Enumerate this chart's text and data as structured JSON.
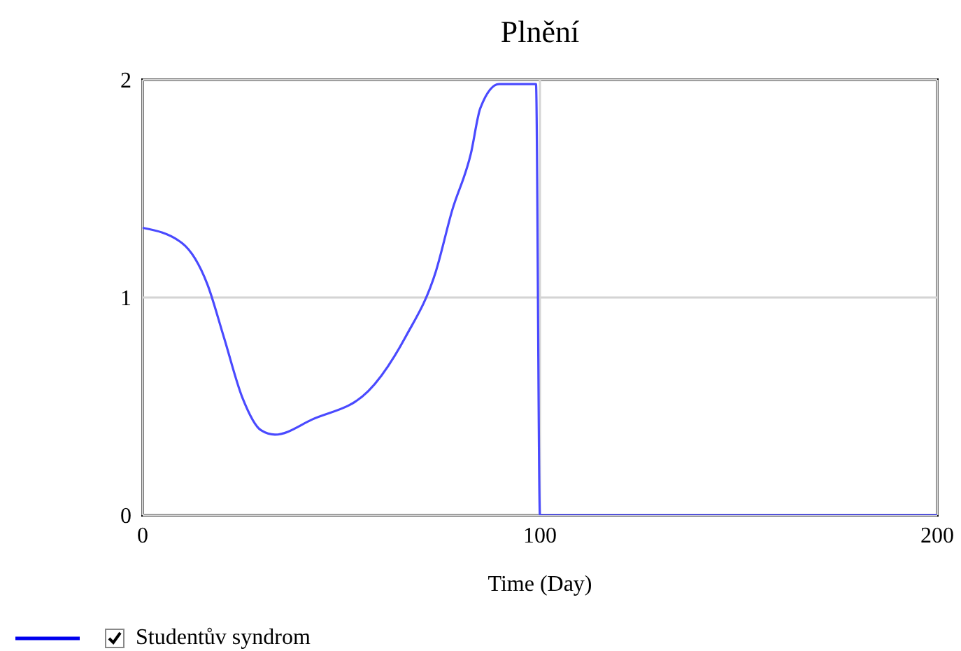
{
  "chart_data": {
    "type": "line",
    "title": "Plnění",
    "xlabel": "Time (Day)",
    "xlim": [
      0,
      200
    ],
    "xticks": [
      0,
      100,
      200
    ],
    "ylim": [
      0,
      2
    ],
    "yticks": [
      0,
      1,
      2
    ],
    "grid": true,
    "legend": "bottom left",
    "marker": "none",
    "line_style": "solid",
    "series": [
      {
        "name": "Studentův syndrom",
        "color": "#4a4aff",
        "x": [
          0,
          9.9,
          16.3,
          20.4,
          25.1,
          29.8,
          33.3,
          42.7,
          56.8,
          66.2,
          73.8,
          77.9,
          82.6,
          85,
          89.7,
          99,
          100,
          200
        ],
        "values": [
          1.32,
          1.25,
          1.06,
          0.82,
          0.54,
          0.39,
          0.37,
          0.44,
          0.57,
          0.82,
          1.12,
          1.4,
          1.66,
          1.87,
          1.98,
          1.98,
          0,
          0
        ]
      }
    ]
  }
}
